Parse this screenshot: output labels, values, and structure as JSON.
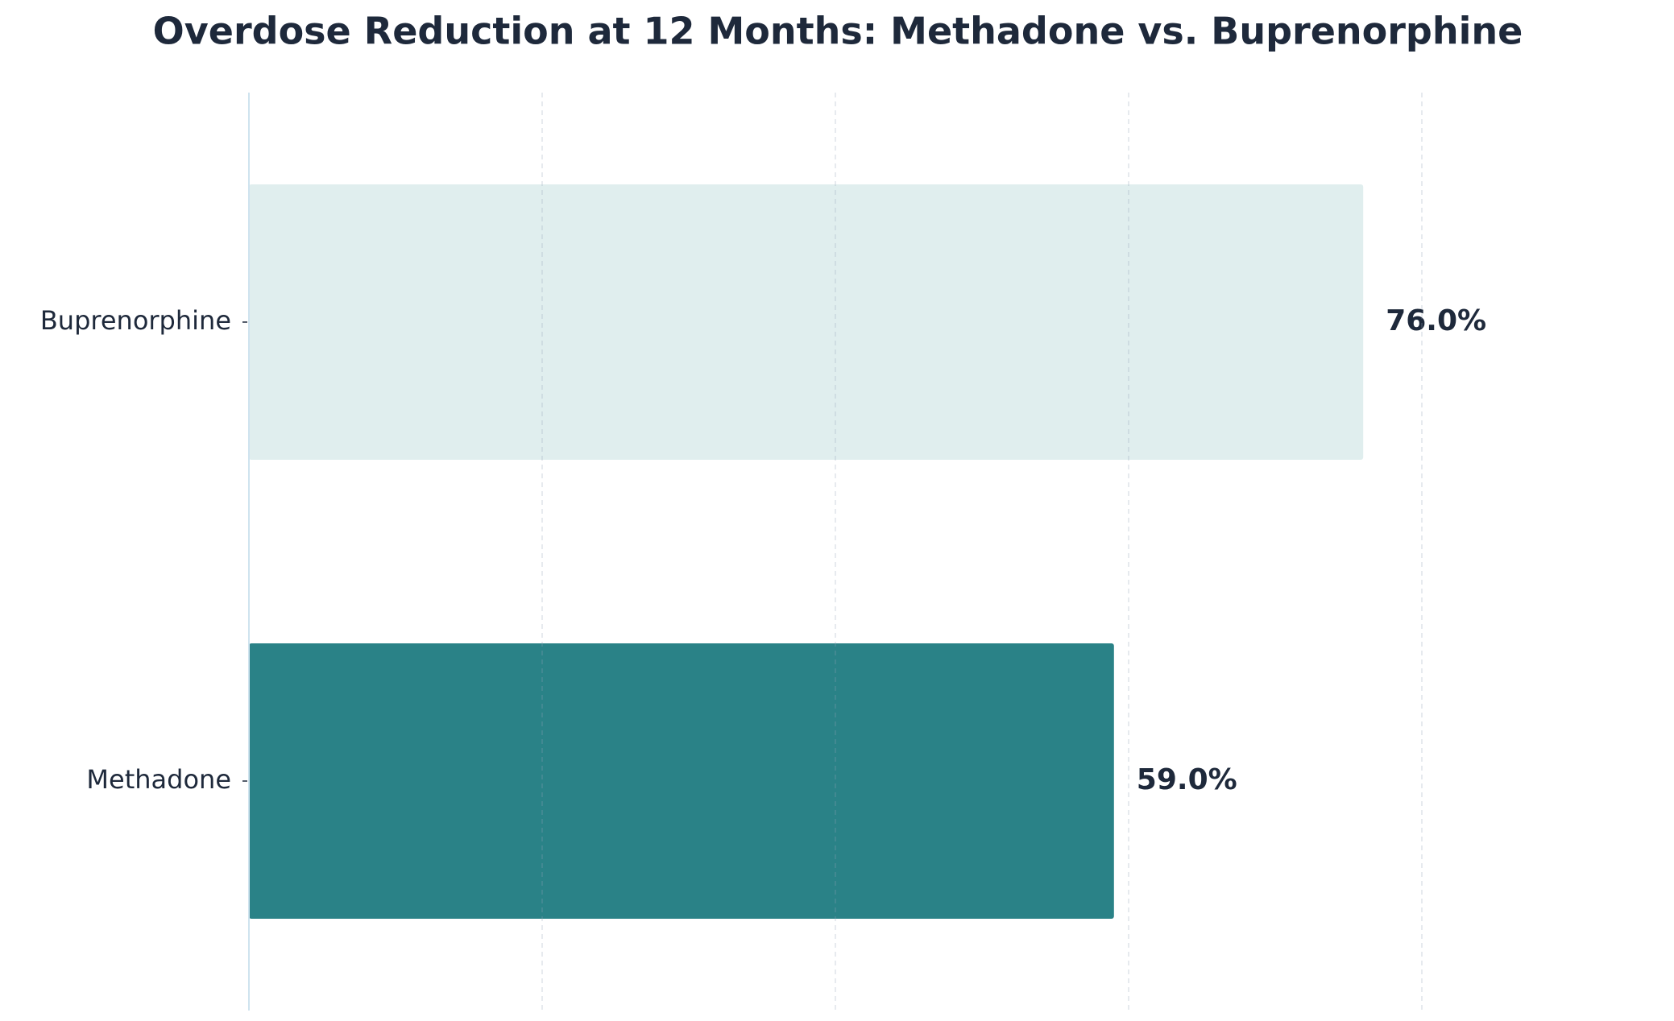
{
  "chart_data": {
    "type": "barh",
    "title": "Overdose Reduction at 12 Months: Methadone vs. Buprenorphine",
    "categories": [
      "Buprenorphine",
      "Methadone"
    ],
    "values": [
      76.0,
      59.0
    ],
    "value_labels": [
      "76.0%",
      "59.0%"
    ],
    "colors": [
      "#e0eeee",
      "#2a8287"
    ],
    "xlim": [
      0,
      95
    ],
    "xticks": [
      0,
      20,
      40,
      60,
      80
    ],
    "grid": true
  }
}
